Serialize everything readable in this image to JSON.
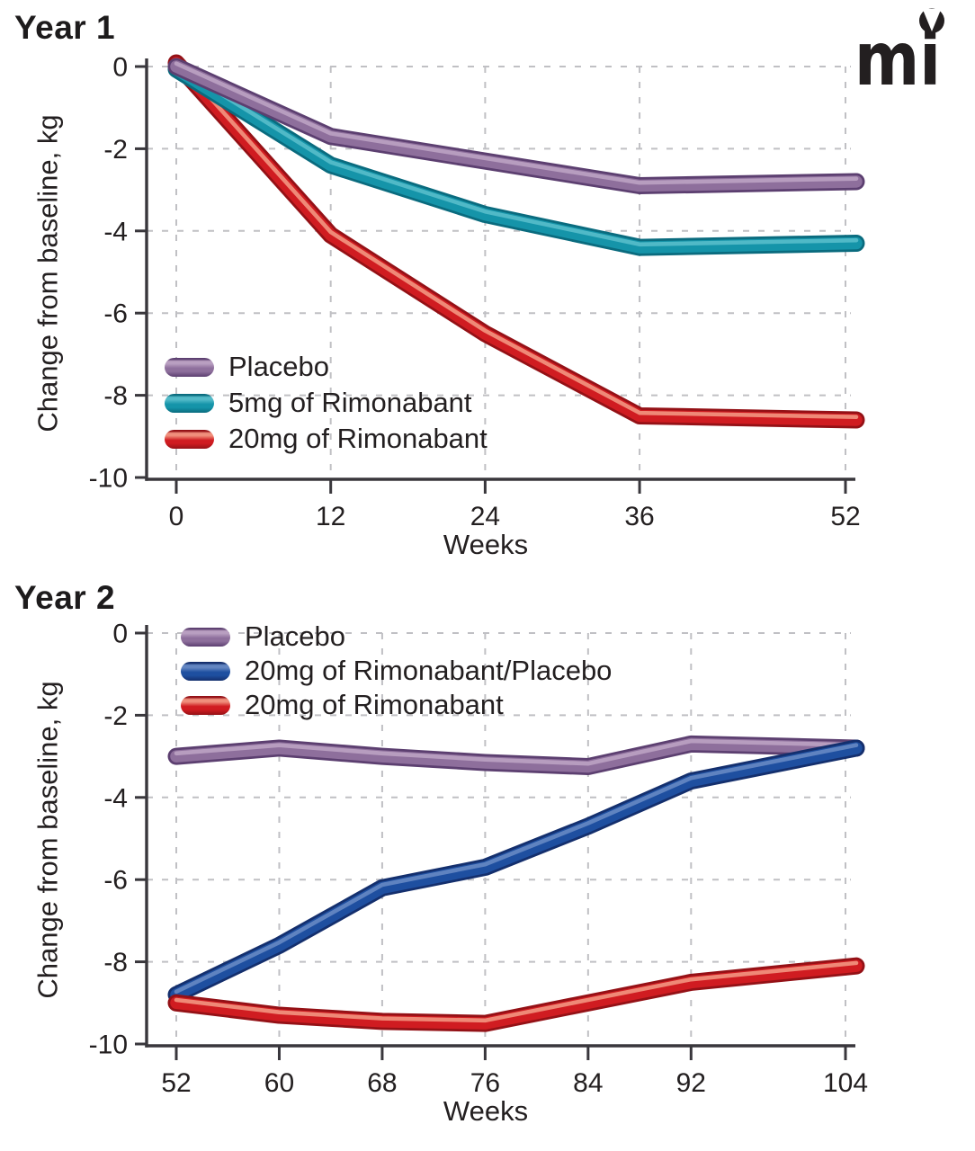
{
  "page": {
    "background": "#ffffff"
  },
  "logo": {
    "text": "mi",
    "notch": "v-wedge",
    "color": "#231f20"
  },
  "styles": {
    "text_color": "#231f20",
    "heading_color": "#1d1b1c",
    "axis_color": "#39373c",
    "grid_color": "#c0c0c4",
    "background": "#ffffff"
  },
  "chart_data": [
    {
      "type": "line",
      "title": "Year 1",
      "xlabel": "Weeks",
      "ylabel": "Change from baseline, kg",
      "x": [
        0,
        12,
        24,
        36,
        52
      ],
      "x_ticks": [
        0,
        12,
        24,
        36,
        52
      ],
      "y_ticks": [
        0,
        -2,
        -4,
        -6,
        -8,
        -10
      ],
      "xlim": [
        0,
        52
      ],
      "ylim": [
        -10,
        0
      ],
      "grid": true,
      "legend_position": "lower-left-inside",
      "draw_order": [
        2,
        1,
        0
      ],
      "series": [
        {
          "name": "Placebo",
          "values": [
            0,
            -1.7,
            -2.3,
            -2.9,
            -2.8
          ],
          "color": "#8e6f9c",
          "color_dark": "#5c3f70",
          "color_light": "#b99fc1"
        },
        {
          "name": "5mg of Rimonabant",
          "values": [
            0,
            -2.4,
            -3.6,
            -4.4,
            -4.3
          ],
          "color": "#1594a9",
          "color_dark": "#0a6b7e",
          "color_light": "#53bac8"
        },
        {
          "name": "20mg of Rimonabant",
          "values": [
            0,
            -4.1,
            -6.5,
            -8.5,
            -8.6
          ],
          "color": "#d01c21",
          "color_dark": "#941116",
          "color_light": "#f08f7c"
        }
      ]
    },
    {
      "type": "line",
      "title": "Year 2",
      "xlabel": "Weeks",
      "ylabel": "Change from baseline, kg",
      "x": [
        52,
        60,
        68,
        76,
        84,
        92,
        104
      ],
      "x_ticks": [
        52,
        60,
        68,
        76,
        84,
        92,
        104
      ],
      "y_ticks": [
        0,
        -2,
        -4,
        -6,
        -8,
        -10
      ],
      "xlim": [
        52,
        104
      ],
      "ylim": [
        -10,
        0
      ],
      "grid": true,
      "legend_position": "upper-left-inside",
      "draw_order": [
        0,
        1,
        2
      ],
      "series": [
        {
          "name": "Placebo",
          "values": [
            -3.0,
            -2.8,
            -3.0,
            -3.15,
            -3.25,
            -2.7,
            -2.8
          ],
          "color": "#8e6f9c",
          "color_dark": "#5c3f70",
          "color_light": "#b99fc1"
        },
        {
          "name": "20mg of Rimonabant/Placebo",
          "values": [
            -8.8,
            -7.6,
            -6.2,
            -5.7,
            -4.7,
            -3.6,
            -2.8
          ],
          "color": "#1e4fa0",
          "color_dark": "#142f6d",
          "color_light": "#6386c2"
        },
        {
          "name": "20mg of Rimonabant",
          "values": [
            -9.0,
            -9.3,
            -9.45,
            -9.5,
            -9.0,
            -8.5,
            -8.1
          ],
          "color": "#d01c21",
          "color_dark": "#941116",
          "color_light": "#f08f7c"
        }
      ]
    }
  ]
}
